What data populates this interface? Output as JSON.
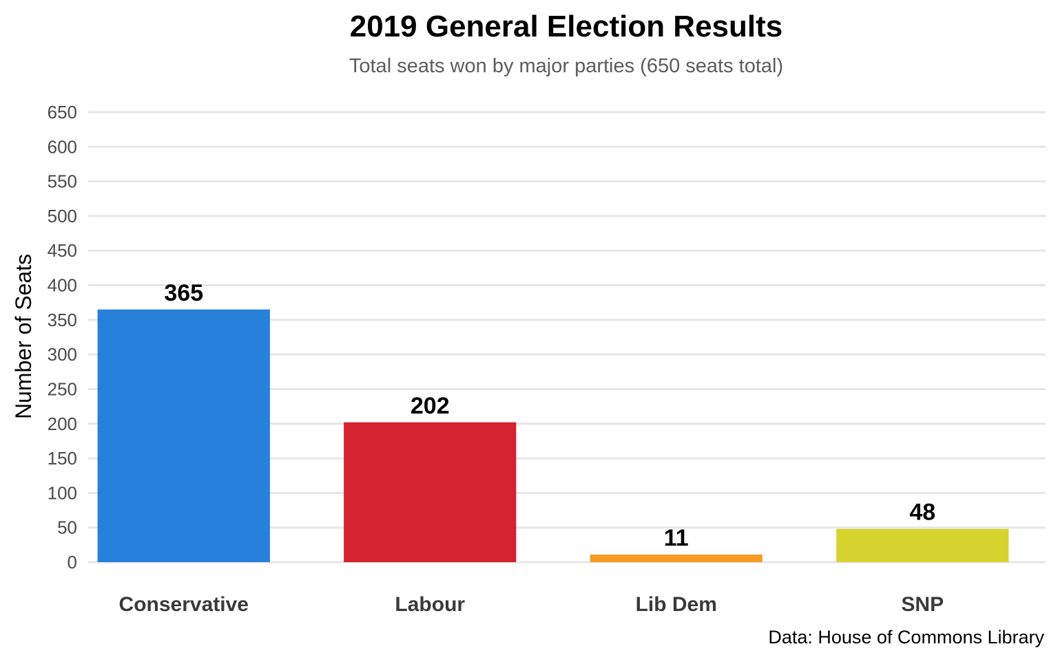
{
  "chart_data": {
    "type": "bar",
    "title": "2019 General Election Results",
    "subtitle": "Total seats won by major parties (650 seats total)",
    "xlabel": "",
    "ylabel": "Number of Seats",
    "categories": [
      "Conservative",
      "Labour",
      "Lib Dem",
      "SNP"
    ],
    "values": [
      365,
      202,
      11,
      48
    ],
    "value_labels": [
      "365",
      "202",
      "11",
      "48"
    ],
    "colors": [
      "#2780d9",
      "#d4222f",
      "#f59a23",
      "#d6d32e"
    ],
    "ylim": [
      0,
      650
    ],
    "yticks": [
      0,
      50,
      100,
      150,
      200,
      250,
      300,
      350,
      400,
      450,
      500,
      550,
      600,
      650
    ],
    "ytick_labels": [
      "0",
      "50",
      "100",
      "150",
      "200",
      "250",
      "300",
      "350",
      "400",
      "450",
      "500",
      "550",
      "600",
      "650"
    ],
    "grid": true,
    "legend": "none",
    "caption": "Data: House of Commons Library"
  }
}
